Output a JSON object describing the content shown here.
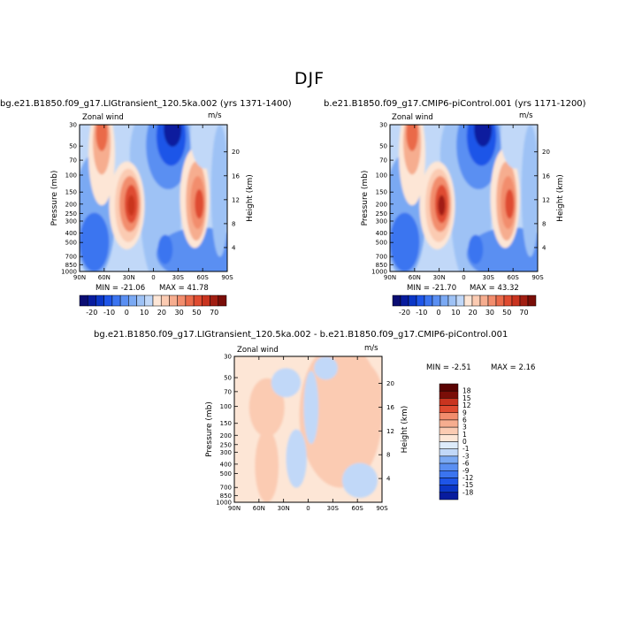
{
  "page": {
    "title": "DJF"
  },
  "colors": {
    "neg": [
      "#0b0d73",
      "#081c9e",
      "#0b36c6",
      "#1e55e8",
      "#3b74f0",
      "#5a8ff2",
      "#7aa9f3",
      "#9ec2f5",
      "#c1d8f8",
      "#ddebfa"
    ],
    "pos": [
      "#fde6d6",
      "#fbcbb2",
      "#f6ad8f",
      "#f28d6d",
      "#ea6a4a",
      "#df4b30",
      "#c9341f",
      "#a11e12",
      "#7a0e08",
      "#5a0302"
    ]
  },
  "chart_data": [
    {
      "type": "heatmap",
      "title": "bg.e21.B1850.f09_g17.LIGtransient_120.5ka.002 (yrs 1371-1400)",
      "subtitle_left": "Zonal wind",
      "units": "m/s",
      "ylabel": "Pressure (mb)",
      "ylabel_right": "Height (km)",
      "x_ticks": [
        "90N",
        "60N",
        "30N",
        "0",
        "30S",
        "60S",
        "90S"
      ],
      "y_ticks": [
        "30",
        "50",
        "70",
        "100",
        "150",
        "200",
        "250",
        "300",
        "400",
        "500",
        "700",
        "850",
        "1000"
      ],
      "y_ticks_right": [
        "20",
        "16",
        "12",
        "8",
        "4"
      ],
      "min_label": "MIN =  -21.06",
      "max_label": "MAX =   41.78",
      "min": -21.06,
      "max": 41.78,
      "colorbar_labels": [
        "-20",
        "-10",
        "0",
        "10",
        "20",
        "30",
        "50",
        "70"
      ],
      "colorbar_levels": [
        -20,
        -15,
        -10,
        -5,
        0,
        5,
        10,
        15,
        20,
        25,
        30,
        40,
        50,
        60,
        70
      ]
    },
    {
      "type": "heatmap",
      "title": "b.e21.B1850.f09_g17.CMIP6-piControl.001 (yrs 1171-1200)",
      "subtitle_left": "Zonal wind",
      "units": "m/s",
      "ylabel": "Pressure (mb)",
      "ylabel_right": "Height (km)",
      "x_ticks": [
        "90N",
        "60N",
        "30N",
        "0",
        "30S",
        "60S",
        "90S"
      ],
      "y_ticks": [
        "30",
        "50",
        "70",
        "100",
        "150",
        "200",
        "250",
        "300",
        "400",
        "500",
        "700",
        "850",
        "1000"
      ],
      "y_ticks_right": [
        "20",
        "16",
        "12",
        "8",
        "4"
      ],
      "min_label": "MIN =  -21.70",
      "max_label": "MAX =   43.32",
      "min": -21.7,
      "max": 43.32,
      "colorbar_labels": [
        "-20",
        "-10",
        "0",
        "10",
        "20",
        "30",
        "50",
        "70"
      ],
      "colorbar_levels": [
        -20,
        -15,
        -10,
        -5,
        0,
        5,
        10,
        15,
        20,
        25,
        30,
        40,
        50,
        60,
        70
      ]
    },
    {
      "type": "heatmap",
      "title": "bg.e21.B1850.f09_g17.LIGtransient_120.5ka.002 - b.e21.B1850.f09_g17.CMIP6-piControl.001",
      "subtitle_left": "Zonal wind",
      "units": "m/s",
      "ylabel": "Pressure (mb)",
      "ylabel_right": "Height (km)",
      "x_ticks": [
        "90N",
        "60N",
        "30N",
        "0",
        "30S",
        "60S",
        "90S"
      ],
      "y_ticks": [
        "30",
        "50",
        "70",
        "100",
        "150",
        "200",
        "250",
        "300",
        "400",
        "500",
        "700",
        "850",
        "1000"
      ],
      "y_ticks_right": [
        "20",
        "16",
        "12",
        "8",
        "4"
      ],
      "min_label": "MIN =   -2.51",
      "max_label": "MAX =    2.16",
      "min": -2.51,
      "max": 2.16,
      "colorbar_labels": [
        "18",
        "15",
        "12",
        "9",
        "6",
        "3",
        "1",
        "0",
        "-1",
        "-3",
        "-6",
        "-9",
        "-12",
        "-15",
        "-18"
      ]
    }
  ]
}
